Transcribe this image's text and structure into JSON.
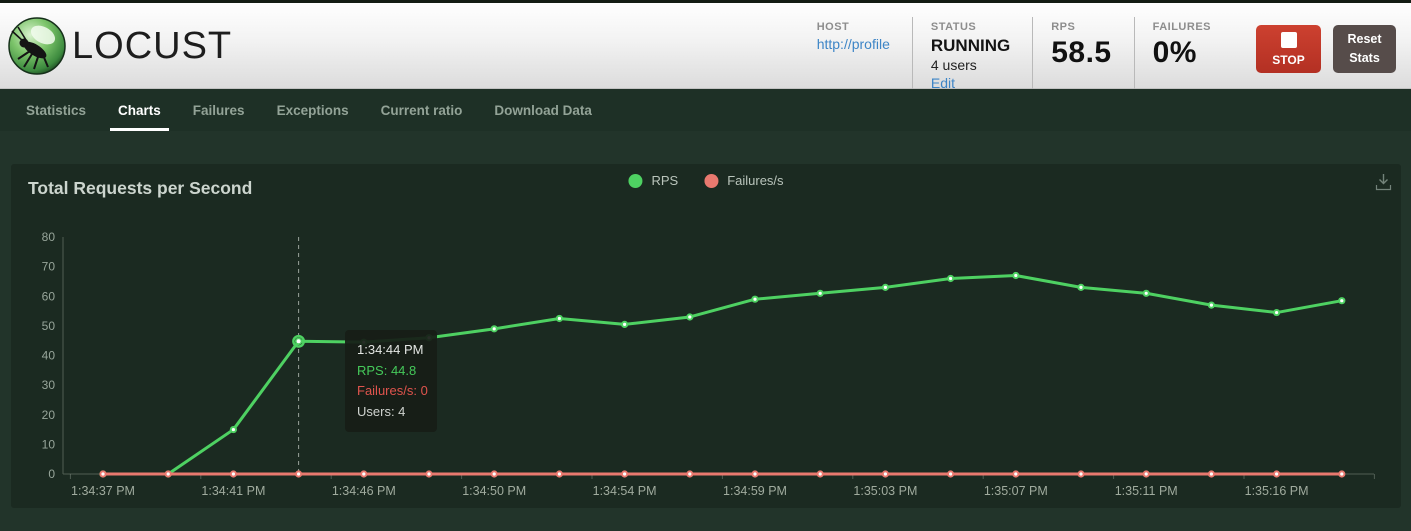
{
  "header": {
    "logo_text": "LOCUST",
    "host": {
      "label": "HOST",
      "value": "http://profile"
    },
    "status": {
      "label": "STATUS",
      "value": "RUNNING",
      "users": "4 users",
      "edit_label": "Edit"
    },
    "rps": {
      "label": "RPS",
      "value": "58.5"
    },
    "failures": {
      "label": "FAILURES",
      "value": "0%"
    },
    "stop_button": {
      "label": "STOP"
    },
    "reset_button": {
      "label": "Reset Stats"
    }
  },
  "nav": {
    "tabs": [
      {
        "label": "Statistics",
        "active": false
      },
      {
        "label": "Charts",
        "active": true
      },
      {
        "label": "Failures",
        "active": false
      },
      {
        "label": "Exceptions",
        "active": false
      },
      {
        "label": "Current ratio",
        "active": false
      },
      {
        "label": "Download Data",
        "active": false
      }
    ]
  },
  "chart": {
    "title": "Total Requests per Second",
    "legend": [
      {
        "label": "RPS",
        "color": "#4ed162"
      },
      {
        "label": "Failures/s",
        "color": "#e9796f"
      }
    ],
    "tooltip": {
      "time": "1:34:44 PM",
      "rps_line": "RPS: 44.8",
      "failures_line": "Failures/s: 0",
      "users_line": "Users: 4"
    }
  },
  "chart_data": {
    "type": "line",
    "x_tick_labels": [
      "1:34:37 PM",
      "1:34:41 PM",
      "1:34:46 PM",
      "1:34:50 PM",
      "1:34:54 PM",
      "1:34:59 PM",
      "1:35:03 PM",
      "1:35:07 PM",
      "1:35:11 PM",
      "1:35:16 PM"
    ],
    "labeled_every": 2,
    "series": [
      {
        "name": "RPS",
        "color": "#4ed162",
        "values": [
          0,
          0,
          15,
          44.8,
          44.5,
          46,
          49,
          52.5,
          50.5,
          53,
          59,
          61,
          63,
          66,
          67,
          63,
          61,
          57,
          54.5,
          58.5
        ]
      },
      {
        "name": "Failures/s",
        "color": "#e9796f",
        "values": [
          0,
          0,
          0,
          0,
          0,
          0,
          0,
          0,
          0,
          0,
          0,
          0,
          0,
          0,
          0,
          0,
          0,
          0,
          0,
          0
        ]
      }
    ],
    "ylim": [
      0,
      80
    ],
    "yticks": [
      0,
      10,
      20,
      30,
      40,
      50,
      60,
      70,
      80
    ],
    "hover_index": 3,
    "grid": false,
    "legend_position": "top-center"
  }
}
